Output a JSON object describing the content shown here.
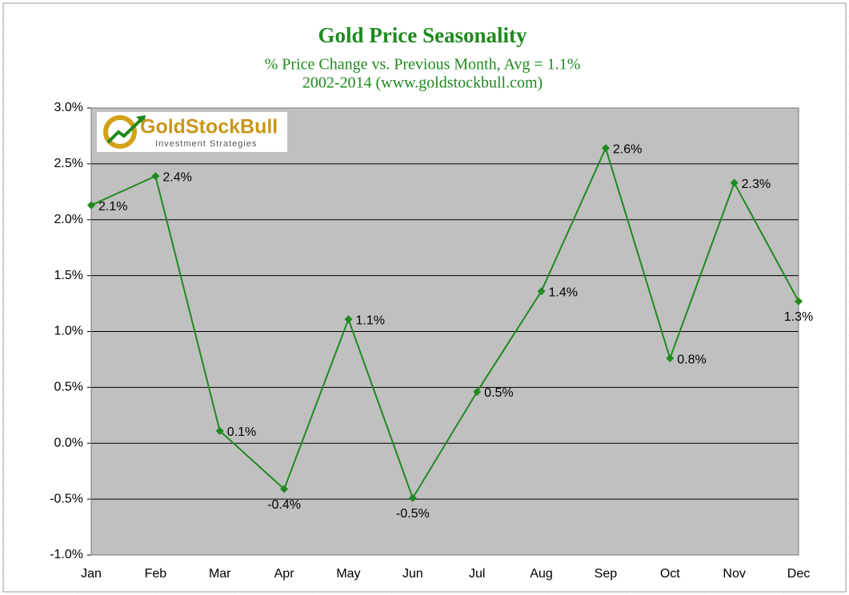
{
  "chart_data": {
    "type": "line",
    "title": "Gold Price Seasonality",
    "subtitle": "% Price Change vs. Previous Month, Avg = 1.1%",
    "subtitle2": "2002-2014 (www.goldstockbull.com)",
    "logo": {
      "name": "GoldStockBull",
      "tagline": "Investment Strategies"
    },
    "categories": [
      "Jan",
      "Feb",
      "Mar",
      "Apr",
      "May",
      "Jun",
      "Jul",
      "Aug",
      "Sep",
      "Oct",
      "Nov",
      "Dec"
    ],
    "values": [
      2.13,
      2.39,
      0.11,
      -0.41,
      1.11,
      -0.49,
      0.46,
      1.36,
      2.64,
      0.76,
      2.33,
      1.27
    ],
    "value_labels": [
      "2.1%",
      "2.4%",
      "0.1%",
      "-0.4%",
      "1.1%",
      "-0.5%",
      "0.5%",
      "1.4%",
      "2.6%",
      "0.8%",
      "2.3%",
      "1.3%"
    ],
    "color": "#1f8a1f",
    "ylim": [
      -1.0,
      3.0
    ],
    "yticks": [
      {
        "value": -1.0,
        "label": "-1.0%"
      },
      {
        "value": -0.5,
        "label": "-0.5%"
      },
      {
        "value": 0.0,
        "label": "0.0%"
      },
      {
        "value": 0.5,
        "label": "0.5%"
      },
      {
        "value": 1.0,
        "label": "1.0%"
      },
      {
        "value": 1.5,
        "label": "1.5%"
      },
      {
        "value": 2.0,
        "label": "2.0%"
      },
      {
        "value": 2.5,
        "label": "2.5%"
      },
      {
        "value": 3.0,
        "label": "3.0%"
      }
    ],
    "grid": true
  }
}
